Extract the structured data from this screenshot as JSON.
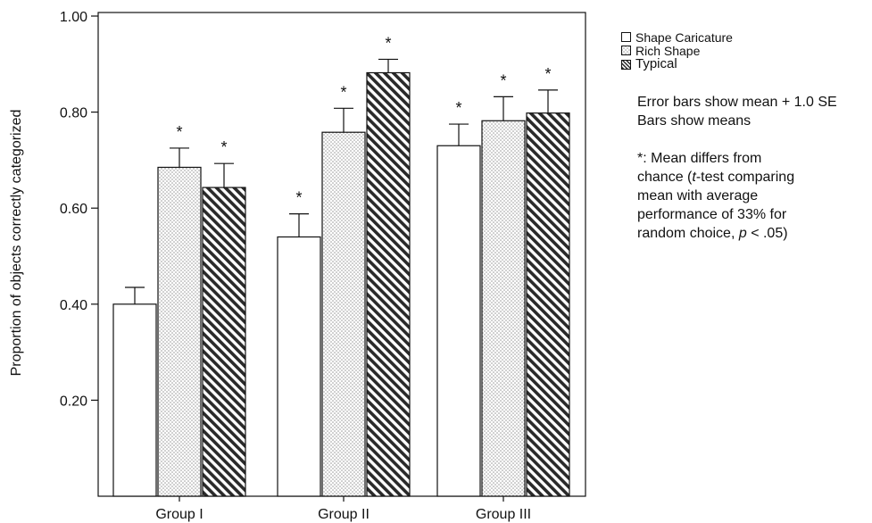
{
  "chart_data": {
    "type": "bar",
    "ylabel": "Proportion of objects correctly categorized",
    "xlabel": "",
    "ylim": [
      0.0,
      1.0
    ],
    "yticks": [
      "0.20",
      "0.40",
      "0.60",
      "0.80",
      "1.00"
    ],
    "categories": [
      "Group I",
      "Group II",
      "Group III"
    ],
    "series": [
      {
        "name": "Shape Caricature",
        "pattern": "plain",
        "values": [
          0.4,
          0.54,
          0.73
        ],
        "se": [
          0.035,
          0.048,
          0.045
        ],
        "significant": [
          false,
          true,
          true
        ]
      },
      {
        "name": "Rich Shape",
        "pattern": "dots",
        "values": [
          0.685,
          0.758,
          0.782
        ],
        "se": [
          0.04,
          0.05,
          0.05
        ],
        "significant": [
          true,
          true,
          true
        ]
      },
      {
        "name": "Typical",
        "pattern": "diagonal-stripes",
        "values": [
          0.643,
          0.882,
          0.798
        ],
        "se": [
          0.05,
          0.028,
          0.048
        ],
        "significant": [
          true,
          true,
          true
        ]
      }
    ],
    "significance_marker": "*",
    "grid": false,
    "legend_position": "right"
  },
  "notes": {
    "error_bars": "Error bars show mean + 1.0 SE",
    "bars": "Bars show means",
    "sig_line1": "*: Mean differs from",
    "sig_line2_pre": "chance (",
    "sig_line2_t": "t",
    "sig_line2_post": "-test comparing",
    "sig_line3": "mean with average",
    "sig_line4": "performance of 33% for",
    "sig_line5_pre": "random choice, ",
    "sig_line5_p": "p",
    "sig_line5_post": " < .05)"
  },
  "colors": {
    "bar_fill": "#ffffff",
    "dots": "#9a9a9a",
    "stripes": "#2a2a2a",
    "axis": "#111111"
  }
}
